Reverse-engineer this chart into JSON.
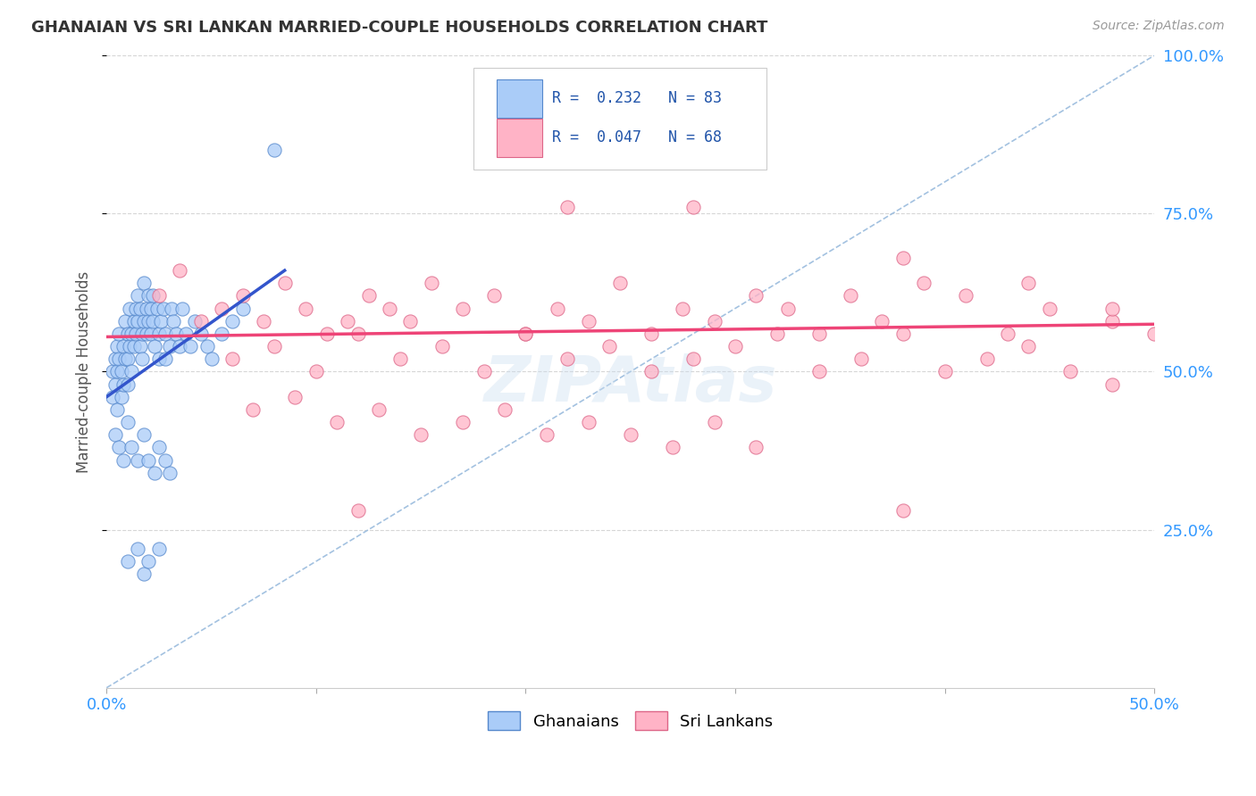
{
  "title": "GHANAIAN VS SRI LANKAN MARRIED-COUPLE HOUSEHOLDS CORRELATION CHART",
  "source": "Source: ZipAtlas.com",
  "ylabel": "Married-couple Households",
  "xlim": [
    0.0,
    0.5
  ],
  "ylim": [
    0.0,
    1.0
  ],
  "ghanaian_color": "#aaccf8",
  "ghanaian_edge": "#5588cc",
  "srilankan_color": "#ffb3c6",
  "srilankan_edge": "#dd6688",
  "trend_ghanaian": "#3355cc",
  "trend_srilankan": "#ee4477",
  "diagonal_color": "#99bbdd",
  "R_ghanaian": 0.232,
  "N_ghanaian": 83,
  "R_srilankan": 0.047,
  "N_srilankan": 68,
  "legend_labels": [
    "Ghanaians",
    "Sri Lankans"
  ],
  "watermark": "ZIPAtlas",
  "background_color": "#ffffff",
  "ghanaian_x": [
    0.003,
    0.003,
    0.004,
    0.004,
    0.005,
    0.005,
    0.005,
    0.006,
    0.006,
    0.007,
    0.007,
    0.008,
    0.008,
    0.009,
    0.009,
    0.01,
    0.01,
    0.01,
    0.011,
    0.011,
    0.012,
    0.012,
    0.013,
    0.013,
    0.014,
    0.014,
    0.015,
    0.015,
    0.016,
    0.016,
    0.017,
    0.017,
    0.018,
    0.018,
    0.019,
    0.019,
    0.02,
    0.02,
    0.021,
    0.021,
    0.022,
    0.022,
    0.023,
    0.024,
    0.025,
    0.025,
    0.026,
    0.027,
    0.028,
    0.028,
    0.03,
    0.031,
    0.032,
    0.033,
    0.035,
    0.036,
    0.038,
    0.04,
    0.042,
    0.045,
    0.048,
    0.05,
    0.055,
    0.06,
    0.065,
    0.004,
    0.006,
    0.008,
    0.01,
    0.012,
    0.015,
    0.018,
    0.02,
    0.023,
    0.025,
    0.028,
    0.03,
    0.01,
    0.015,
    0.018,
    0.02,
    0.025,
    0.08
  ],
  "ghanaian_y": [
    0.5,
    0.46,
    0.52,
    0.48,
    0.54,
    0.5,
    0.44,
    0.52,
    0.56,
    0.5,
    0.46,
    0.54,
    0.48,
    0.52,
    0.58,
    0.56,
    0.52,
    0.48,
    0.54,
    0.6,
    0.56,
    0.5,
    0.58,
    0.54,
    0.6,
    0.56,
    0.62,
    0.58,
    0.6,
    0.54,
    0.56,
    0.52,
    0.58,
    0.64,
    0.6,
    0.56,
    0.62,
    0.58,
    0.6,
    0.56,
    0.62,
    0.58,
    0.54,
    0.6,
    0.56,
    0.52,
    0.58,
    0.6,
    0.56,
    0.52,
    0.54,
    0.6,
    0.58,
    0.56,
    0.54,
    0.6,
    0.56,
    0.54,
    0.58,
    0.56,
    0.54,
    0.52,
    0.56,
    0.58,
    0.6,
    0.4,
    0.38,
    0.36,
    0.42,
    0.38,
    0.36,
    0.4,
    0.36,
    0.34,
    0.38,
    0.36,
    0.34,
    0.2,
    0.22,
    0.18,
    0.2,
    0.22,
    0.85
  ],
  "srilankan_x": [
    0.025,
    0.035,
    0.045,
    0.055,
    0.065,
    0.075,
    0.085,
    0.095,
    0.105,
    0.115,
    0.125,
    0.135,
    0.145,
    0.155,
    0.17,
    0.185,
    0.2,
    0.215,
    0.23,
    0.245,
    0.26,
    0.275,
    0.29,
    0.31,
    0.325,
    0.34,
    0.355,
    0.37,
    0.39,
    0.41,
    0.43,
    0.45,
    0.48,
    0.06,
    0.08,
    0.1,
    0.12,
    0.14,
    0.16,
    0.18,
    0.2,
    0.22,
    0.24,
    0.26,
    0.28,
    0.3,
    0.32,
    0.34,
    0.36,
    0.38,
    0.4,
    0.42,
    0.44,
    0.46,
    0.48,
    0.07,
    0.09,
    0.11,
    0.13,
    0.15,
    0.17,
    0.19,
    0.21,
    0.23,
    0.25,
    0.27,
    0.29,
    0.31
  ],
  "srilankan_y": [
    0.62,
    0.66,
    0.58,
    0.6,
    0.62,
    0.58,
    0.64,
    0.6,
    0.56,
    0.58,
    0.62,
    0.6,
    0.58,
    0.64,
    0.6,
    0.62,
    0.56,
    0.6,
    0.58,
    0.64,
    0.56,
    0.6,
    0.58,
    0.62,
    0.6,
    0.56,
    0.62,
    0.58,
    0.64,
    0.62,
    0.56,
    0.6,
    0.58,
    0.52,
    0.54,
    0.5,
    0.56,
    0.52,
    0.54,
    0.5,
    0.56,
    0.52,
    0.54,
    0.5,
    0.52,
    0.54,
    0.56,
    0.5,
    0.52,
    0.56,
    0.5,
    0.52,
    0.54,
    0.5,
    0.48,
    0.44,
    0.46,
    0.42,
    0.44,
    0.4,
    0.42,
    0.44,
    0.4,
    0.42,
    0.4,
    0.38,
    0.42,
    0.38
  ],
  "srilankan_outlier_x": [
    0.22,
    0.38,
    0.44,
    0.48,
    0.12,
    0.38,
    0.5,
    0.28
  ],
  "srilankan_outlier_y": [
    0.76,
    0.68,
    0.64,
    0.6,
    0.28,
    0.28,
    0.56,
    0.76
  ],
  "ghanaian_trend_x": [
    0.0,
    0.085
  ],
  "ghanaian_trend_y": [
    0.46,
    0.66
  ],
  "srilankan_trend_x": [
    0.0,
    0.5
  ],
  "srilankan_trend_y": [
    0.555,
    0.575
  ]
}
